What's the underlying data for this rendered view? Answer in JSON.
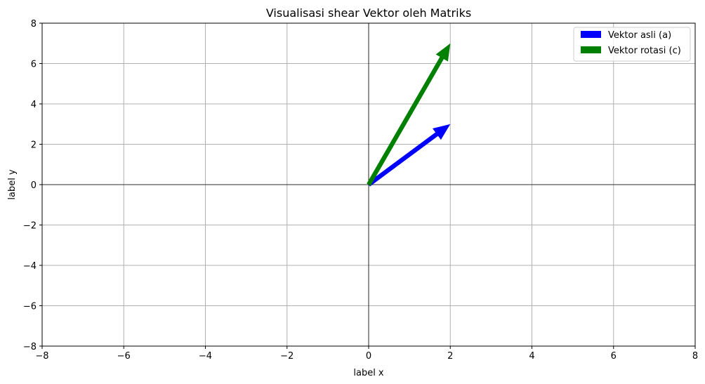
{
  "chart_data": {
    "type": "quiver",
    "title": "Visualisasi shear Vektor oleh Matriks",
    "xlabel": "label x",
    "ylabel": "label y",
    "xlim": [
      -8,
      8
    ],
    "ylim": [
      -8,
      8
    ],
    "xticks": [
      -8,
      -6,
      -4,
      -2,
      0,
      2,
      4,
      6,
      8
    ],
    "yticks": [
      -8,
      -6,
      -4,
      -2,
      0,
      2,
      4,
      6,
      8
    ],
    "grid": true,
    "legend_position": "top-right",
    "series": [
      {
        "name": "Vektor asli (a)",
        "color": "#0000ff",
        "origin": [
          0,
          0
        ],
        "vector": [
          2,
          3
        ]
      },
      {
        "name": "Vektor rotasi (c)",
        "color": "#008000",
        "origin": [
          0,
          0
        ],
        "vector": [
          2,
          7
        ]
      }
    ]
  }
}
